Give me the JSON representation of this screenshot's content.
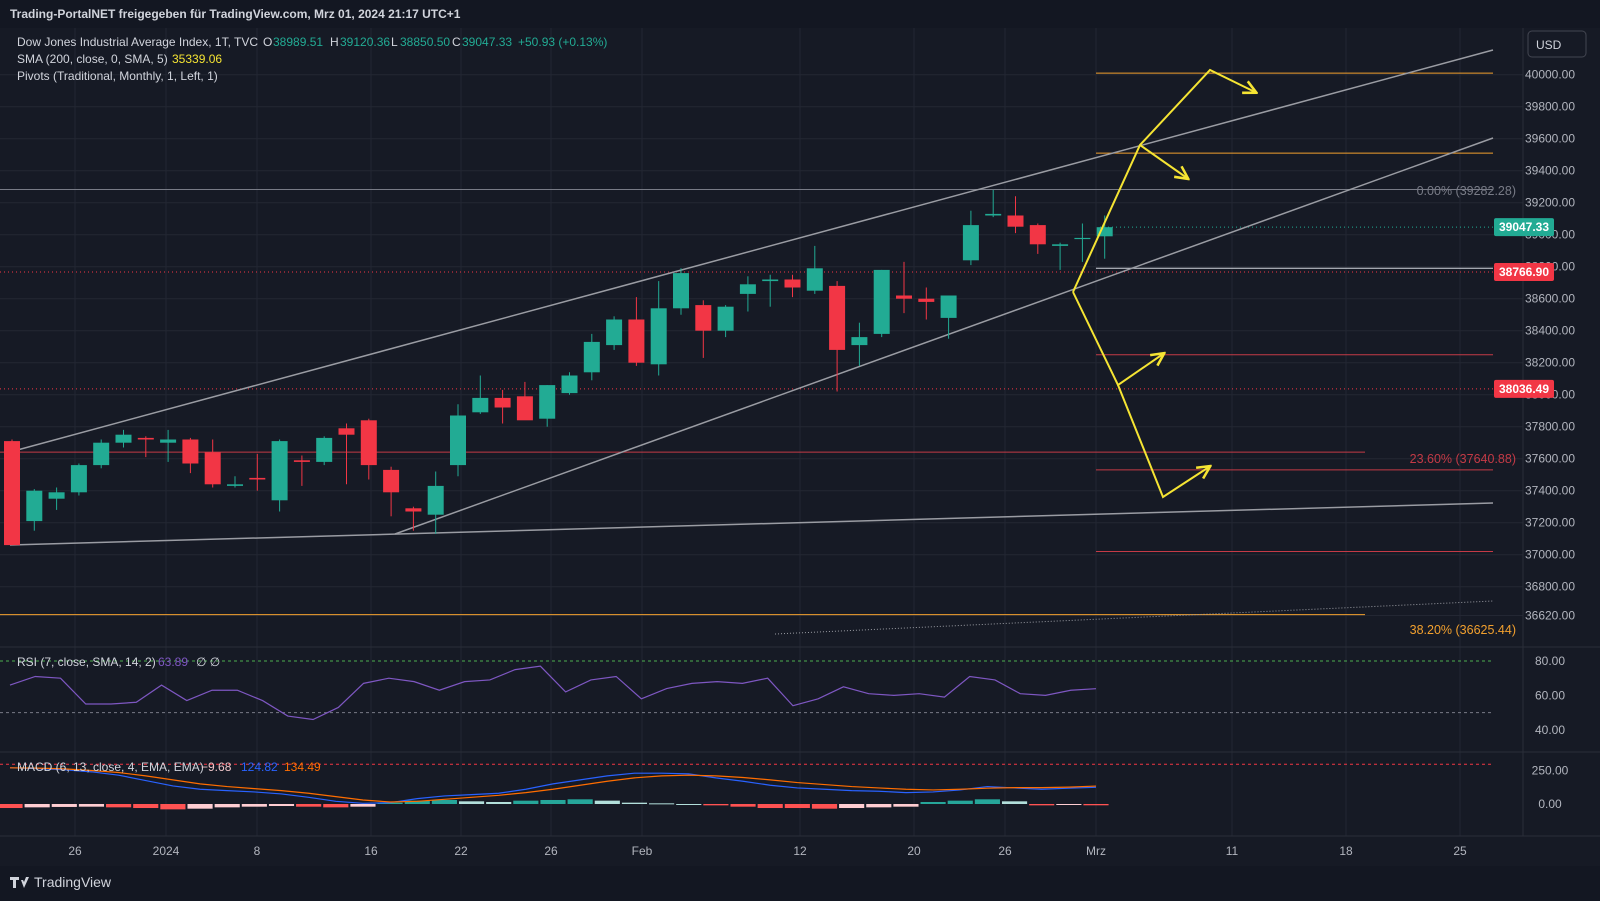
{
  "header": {
    "publisher": "Trading-PortalNET freigegeben für TradingView.com, Mrz 01, 2024 21:17 UTC+1"
  },
  "legend": {
    "symbol": "Dow Jones Industrial Average Index, 1T, TVC",
    "o_label": "O",
    "o_value": "38989.51",
    "h_label": "H",
    "h_value": "39120.36",
    "l_label": "L",
    "l_value": "38850.50",
    "c_label": "C",
    "c_value": "39047.33",
    "change": "+50.93 (+0.13%)",
    "sma_label": "SMA (200, close, 0, SMA, 5)",
    "sma_value": "35339.06",
    "pivots_label": "Pivots (Traditional, Monthly, 1, Left, 1)"
  },
  "currency": "USD",
  "branding": "TradingView",
  "colors": {
    "background": "#161a25",
    "grid": "#232733",
    "up": "#22ab94",
    "down": "#f23645",
    "text": "#d1d4dc",
    "axis_text": "#b2b5be",
    "annotation": "#f5e433",
    "pivot_orange": "#f2a02e",
    "pivot_red": "#c43a46",
    "channel": "#9a9ca3",
    "rsi": "#7e57c2",
    "macd_line": "#2962ff",
    "signal_line": "#ff6d00",
    "hist_up_strong": "#26a69a",
    "hist_up_weak": "#b2dfdb",
    "hist_down_strong": "#ff5252",
    "hist_down_weak": "#ffcdd2"
  },
  "price_axis": {
    "labels": [
      "40000.00",
      "39800.00",
      "39600.00",
      "39400.00",
      "39200.00",
      "39000.00",
      "38800.00",
      "38600.00",
      "38400.00",
      "38200.00",
      "38000.00",
      "37800.00",
      "37600.00",
      "37400.00",
      "37200.00",
      "37000.00",
      "36800.00",
      "36620.00"
    ],
    "current_price_tag": "39047.33",
    "red_tag_1": "38766.90",
    "red_tag_2": "38036.49"
  },
  "fib": {
    "level_0": "0.00% (39282.28)",
    "level_236": "23.60% (37640.88)",
    "level_382": "38.20% (36625.44)"
  },
  "rsi": {
    "label": "RSI (7, close, SMA, 14, 2)",
    "value": "63.89",
    "extra": "∅ ∅",
    "axis_labels": [
      "80.00",
      "60.00",
      "40.00"
    ]
  },
  "macd": {
    "label": "MACD (6, 13, close, 4, EMA, EMA)",
    "hist_value": "−9.68",
    "macd_value": "124.82",
    "signal_value": "134.49",
    "axis_labels": [
      "250.00",
      "0.00"
    ]
  },
  "time_axis": {
    "labels": [
      "26",
      "2024",
      "8",
      "16",
      "22",
      "26",
      "Feb",
      "12",
      "20",
      "26",
      "Mrz",
      "11",
      "18",
      "25"
    ]
  },
  "chart_data": {
    "type": "candlestick",
    "title": "Dow Jones Industrial Average Index, 1T, TVC",
    "ylim": [
      36600,
      40100
    ],
    "candles": [
      {
        "o": 37710,
        "h": 37720,
        "l": 37060,
        "c": 37060
      },
      {
        "o": 37210,
        "h": 37410,
        "l": 37150,
        "c": 37400
      },
      {
        "o": 37350,
        "h": 37420,
        "l": 37280,
        "c": 37390
      },
      {
        "o": 37390,
        "h": 37570,
        "l": 37370,
        "c": 37560
      },
      {
        "o": 37560,
        "h": 37720,
        "l": 37540,
        "c": 37700
      },
      {
        "o": 37700,
        "h": 37780,
        "l": 37670,
        "c": 37750
      },
      {
        "o": 37730,
        "h": 37740,
        "l": 37610,
        "c": 37720
      },
      {
        "o": 37700,
        "h": 37780,
        "l": 37580,
        "c": 37720
      },
      {
        "o": 37720,
        "h": 37730,
        "l": 37510,
        "c": 37570
      },
      {
        "o": 37640,
        "h": 37720,
        "l": 37420,
        "c": 37440
      },
      {
        "o": 37430,
        "h": 37490,
        "l": 37420,
        "c": 37440
      },
      {
        "o": 37480,
        "h": 37630,
        "l": 37400,
        "c": 37470
      },
      {
        "o": 37340,
        "h": 37720,
        "l": 37270,
        "c": 37710
      },
      {
        "o": 37590,
        "h": 37620,
        "l": 37430,
        "c": 37580
      },
      {
        "o": 37580,
        "h": 37740,
        "l": 37560,
        "c": 37730
      },
      {
        "o": 37790,
        "h": 37820,
        "l": 37440,
        "c": 37750
      },
      {
        "o": 37840,
        "h": 37850,
        "l": 37470,
        "c": 37560
      },
      {
        "o": 37530,
        "h": 37550,
        "l": 37240,
        "c": 37390
      },
      {
        "o": 37290,
        "h": 37300,
        "l": 37150,
        "c": 37270
      },
      {
        "o": 37250,
        "h": 37520,
        "l": 37130,
        "c": 37430
      },
      {
        "o": 37560,
        "h": 37940,
        "l": 37490,
        "c": 37870
      },
      {
        "o": 37890,
        "h": 38120,
        "l": 37880,
        "c": 37980
      },
      {
        "o": 37980,
        "h": 38030,
        "l": 37820,
        "c": 37920
      },
      {
        "o": 37990,
        "h": 38080,
        "l": 37850,
        "c": 37840
      },
      {
        "o": 37850,
        "h": 38060,
        "l": 37800,
        "c": 38060
      },
      {
        "o": 38010,
        "h": 38140,
        "l": 38000,
        "c": 38120
      },
      {
        "o": 38140,
        "h": 38380,
        "l": 38090,
        "c": 38330
      },
      {
        "o": 38310,
        "h": 38490,
        "l": 38280,
        "c": 38470
      },
      {
        "o": 38470,
        "h": 38610,
        "l": 38180,
        "c": 38200
      },
      {
        "o": 38190,
        "h": 38710,
        "l": 38120,
        "c": 38540
      },
      {
        "o": 38540,
        "h": 38790,
        "l": 38500,
        "c": 38760
      },
      {
        "o": 38560,
        "h": 38590,
        "l": 38230,
        "c": 38400
      },
      {
        "o": 38400,
        "h": 38560,
        "l": 38360,
        "c": 38550
      },
      {
        "o": 38630,
        "h": 38740,
        "l": 38520,
        "c": 38690
      },
      {
        "o": 38710,
        "h": 38750,
        "l": 38550,
        "c": 38720
      },
      {
        "o": 38720,
        "h": 38750,
        "l": 38610,
        "c": 38670
      },
      {
        "o": 38650,
        "h": 38930,
        "l": 38630,
        "c": 38790
      },
      {
        "o": 38680,
        "h": 38710,
        "l": 38020,
        "c": 38280
      },
      {
        "o": 38310,
        "h": 38450,
        "l": 38180,
        "c": 38360
      },
      {
        "o": 38380,
        "h": 38780,
        "l": 38360,
        "c": 38780
      },
      {
        "o": 38620,
        "h": 38830,
        "l": 38510,
        "c": 38600
      },
      {
        "o": 38600,
        "h": 38670,
        "l": 38470,
        "c": 38580
      },
      {
        "o": 38480,
        "h": 38610,
        "l": 38350,
        "c": 38620
      },
      {
        "o": 38840,
        "h": 39150,
        "l": 38810,
        "c": 39060
      },
      {
        "o": 39120,
        "h": 39280,
        "l": 39110,
        "c": 39130
      },
      {
        "o": 39120,
        "h": 39240,
        "l": 39010,
        "c": 39050
      },
      {
        "o": 39060,
        "h": 39070,
        "l": 38880,
        "c": 38940
      },
      {
        "o": 38930,
        "h": 38950,
        "l": 38780,
        "c": 38940
      },
      {
        "o": 38980,
        "h": 39070,
        "l": 38830,
        "c": 38980
      },
      {
        "o": 38990,
        "h": 39120,
        "l": 38850,
        "c": 39047
      }
    ],
    "sma_200": 35339.06,
    "fib_levels": [
      {
        "label": "0.00%",
        "price": 39282.28
      },
      {
        "label": "23.60%",
        "price": 37640.88
      },
      {
        "label": "38.20%",
        "price": 36625.44
      }
    ],
    "pivot_levels": [
      {
        "price": 40010,
        "color": "orange"
      },
      {
        "price": 39510,
        "color": "orange"
      },
      {
        "price": 38790,
        "color": "white"
      },
      {
        "price": 38250,
        "color": "red"
      },
      {
        "price": 37530,
        "color": "red"
      },
      {
        "price": 37020,
        "color": "red"
      }
    ],
    "rsi": [
      66,
      71,
      70,
      55,
      55,
      56,
      66,
      57,
      63,
      63,
      57,
      48,
      46,
      53,
      67,
      70,
      68,
      63,
      68,
      69,
      75,
      77,
      62,
      69,
      71,
      58,
      64,
      67,
      68,
      67,
      70,
      54,
      58,
      65,
      61,
      60,
      61,
      59,
      71,
      69,
      61,
      60,
      63,
      63.89
    ],
    "macd_line": [
      270,
      265,
      255,
      240,
      215,
      175,
      135,
      110,
      100,
      90,
      75,
      50,
      20,
      5,
      10,
      40,
      60,
      70,
      80,
      110,
      150,
      180,
      210,
      230,
      230,
      225,
      195,
      170,
      140,
      120,
      110,
      100,
      95,
      85,
      90,
      105,
      130,
      120,
      110,
      118,
      125
    ],
    "signal_line": [
      270,
      268,
      262,
      250,
      235,
      210,
      180,
      150,
      130,
      115,
      100,
      80,
      55,
      30,
      15,
      20,
      35,
      50,
      65,
      85,
      110,
      140,
      170,
      195,
      210,
      215,
      210,
      198,
      180,
      160,
      145,
      130,
      120,
      110,
      105,
      110,
      118,
      122,
      122,
      126,
      134
    ],
    "macd_hist": [
      -30,
      -25,
      -22,
      -20,
      -25,
      -30,
      -40,
      -35,
      -25,
      -20,
      -15,
      -20,
      -25,
      -20,
      10,
      25,
      30,
      20,
      15,
      25,
      30,
      35,
      25,
      10,
      5,
      0,
      -10,
      -20,
      -30,
      -30,
      -35,
      -30,
      -25,
      -20,
      15,
      25,
      35,
      20,
      -10,
      -5,
      -9.68
    ]
  }
}
